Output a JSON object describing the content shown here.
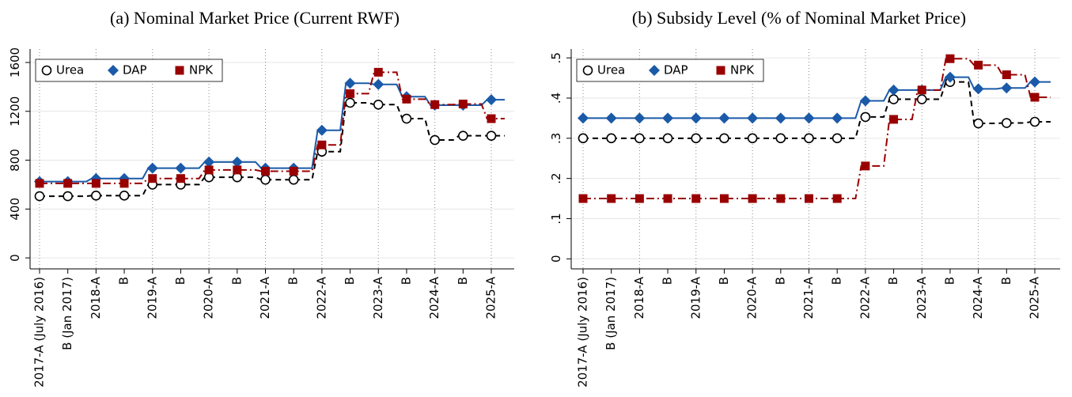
{
  "chart_data": [
    {
      "type": "line",
      "title": "(a) Nominal Market Price (Current RWF)",
      "categories": [
        "2017-A (July 2016)",
        "B (Jan 2017)",
        "2018-A",
        "B",
        "2019-A",
        "B",
        "2020-A",
        "B",
        "2021-A",
        "B",
        "2022-A",
        "B",
        "2023-A",
        "B",
        "2024-A",
        "B",
        "2025-A"
      ],
      "ylim": [
        -90,
        1710
      ],
      "yticks": [
        0,
        400,
        800,
        1200,
        1600
      ],
      "grid": true,
      "legend": "top-left",
      "series": [
        {
          "name": "Urea",
          "color": "#000000",
          "marker": "circle",
          "dash": "dashed",
          "values": [
            505,
            505,
            510,
            510,
            600,
            600,
            660,
            660,
            640,
            640,
            870,
            1270,
            1255,
            1140,
            965,
            1000,
            1000
          ]
        },
        {
          "name": "DAP",
          "color": "#1a5aa8",
          "marker": "diamond",
          "dash": "solid",
          "values": [
            625,
            625,
            650,
            650,
            735,
            735,
            785,
            785,
            735,
            735,
            1045,
            1430,
            1420,
            1320,
            1250,
            1250,
            1295
          ]
        },
        {
          "name": "NPK",
          "color": "#990000",
          "marker": "square",
          "dash": "dashdot",
          "values": [
            610,
            610,
            610,
            610,
            650,
            650,
            720,
            720,
            710,
            710,
            925,
            1345,
            1520,
            1300,
            1255,
            1260,
            1140
          ]
        }
      ]
    },
    {
      "type": "line",
      "title": "(b) Subsidy Level (% of Nominal Market Price)",
      "categories": [
        "2017-A (July 2016)",
        "B (Jan 2017)",
        "2018-A",
        "B",
        "2019-A",
        "B",
        "2020-A",
        "B",
        "2021-A",
        "B",
        "2022-A",
        "B",
        "2023-A",
        "B",
        "2024-A",
        "B",
        "2025-A"
      ],
      "ylim": [
        -0.025,
        0.522
      ],
      "yticks": [
        0,
        {
          "value": 0.1,
          "label": ".1"
        },
        {
          "value": 0.2,
          "label": ".2"
        },
        {
          "value": 0.3,
          "label": ".3"
        },
        {
          "value": 0.4,
          "label": ".4"
        },
        {
          "value": 0.5,
          "label": ".5"
        }
      ],
      "grid": true,
      "legend": "top-left",
      "series": [
        {
          "name": "Urea",
          "color": "#000000",
          "marker": "circle",
          "dash": "dashed",
          "values": [
            0.3,
            0.3,
            0.3,
            0.3,
            0.3,
            0.3,
            0.3,
            0.3,
            0.3,
            0.3,
            0.353,
            0.397,
            0.397,
            0.44,
            0.337,
            0.338,
            0.341
          ]
        },
        {
          "name": "DAP",
          "color": "#1a5aa8",
          "marker": "diamond",
          "dash": "solid",
          "values": [
            0.35,
            0.35,
            0.35,
            0.35,
            0.35,
            0.35,
            0.35,
            0.35,
            0.35,
            0.35,
            0.393,
            0.42,
            0.42,
            0.452,
            0.423,
            0.425,
            0.44
          ]
        },
        {
          "name": "NPK",
          "color": "#990000",
          "marker": "square",
          "dash": "dashdot",
          "values": [
            0.15,
            0.15,
            0.15,
            0.15,
            0.15,
            0.15,
            0.15,
            0.15,
            0.15,
            0.15,
            0.231,
            0.347,
            0.42,
            0.498,
            0.482,
            0.458,
            0.402
          ]
        }
      ]
    }
  ]
}
